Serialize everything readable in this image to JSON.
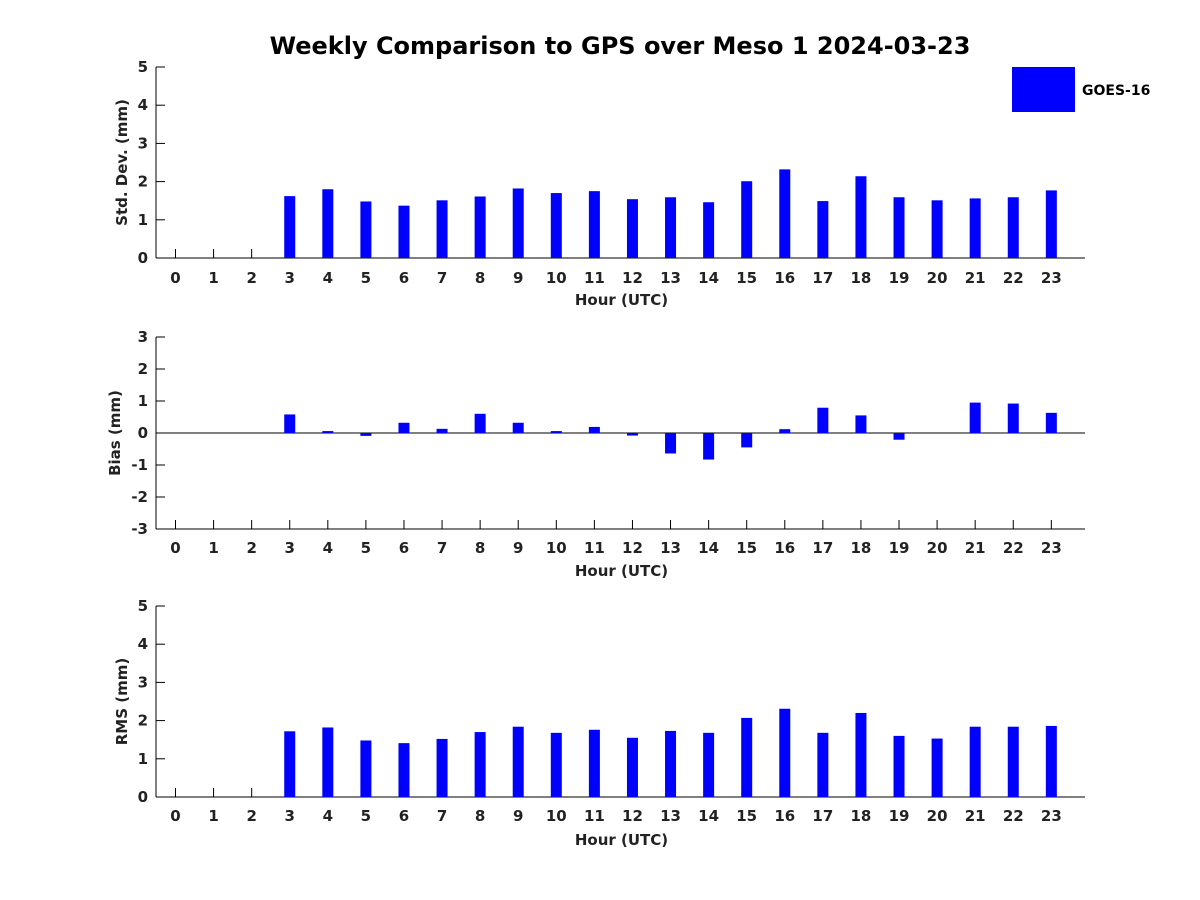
{
  "title": "Weekly Comparison to GPS over Meso 1 2024-03-23",
  "legend": {
    "label": "GOES-16",
    "color": "#0000ff"
  },
  "chart_data": [
    {
      "type": "bar",
      "name": "std",
      "series_name": "GOES-16",
      "categories": [
        "0",
        "1",
        "2",
        "3",
        "4",
        "5",
        "6",
        "7",
        "8",
        "9",
        "10",
        "11",
        "12",
        "13",
        "14",
        "15",
        "16",
        "17",
        "18",
        "19",
        "20",
        "21",
        "22",
        "23"
      ],
      "values": [
        0,
        0,
        0,
        1.62,
        1.8,
        1.48,
        1.37,
        1.51,
        1.61,
        1.82,
        1.7,
        1.75,
        1.54,
        1.59,
        1.46,
        2.01,
        2.32,
        1.49,
        2.14,
        1.59,
        1.51,
        1.56,
        1.59,
        1.77
      ],
      "xlabel": "Hour (UTC)",
      "ylabel": "Std. Dev. (mm)",
      "ylim": [
        0,
        5
      ],
      "yticks": [
        "0",
        "1",
        "2",
        "3",
        "4",
        "5"
      ]
    },
    {
      "type": "bar",
      "name": "bias",
      "series_name": "GOES-16",
      "categories": [
        "0",
        "1",
        "2",
        "3",
        "4",
        "5",
        "6",
        "7",
        "8",
        "9",
        "10",
        "11",
        "12",
        "13",
        "14",
        "15",
        "16",
        "17",
        "18",
        "19",
        "20",
        "21",
        "22",
        "23"
      ],
      "values": [
        0,
        0,
        0,
        0.58,
        0.06,
        -0.09,
        0.32,
        0.13,
        0.6,
        0.32,
        0.06,
        0.19,
        -0.08,
        -0.64,
        -0.83,
        -0.45,
        0.12,
        0.79,
        0.55,
        -0.21,
        0,
        0.95,
        0.92,
        0.63
      ],
      "xlabel": "Hour (UTC)",
      "ylabel": "Bias (mm)",
      "ylim": [
        -3,
        3
      ],
      "yticks": [
        "-3",
        "-2",
        "-1",
        "0",
        "1",
        "2",
        "3"
      ]
    },
    {
      "type": "bar",
      "name": "rms",
      "series_name": "GOES-16",
      "categories": [
        "0",
        "1",
        "2",
        "3",
        "4",
        "5",
        "6",
        "7",
        "8",
        "9",
        "10",
        "11",
        "12",
        "13",
        "14",
        "15",
        "16",
        "17",
        "18",
        "19",
        "20",
        "21",
        "22",
        "23"
      ],
      "values": [
        0,
        0,
        0,
        1.72,
        1.82,
        1.48,
        1.41,
        1.52,
        1.7,
        1.84,
        1.68,
        1.76,
        1.55,
        1.73,
        1.68,
        2.07,
        2.31,
        1.68,
        2.2,
        1.6,
        1.53,
        1.84,
        1.84,
        1.86
      ],
      "xlabel": "Hour (UTC)",
      "ylabel": "RMS (mm)",
      "ylim": [
        0,
        5
      ],
      "yticks": [
        "0",
        "1",
        "2",
        "3",
        "4",
        "5"
      ]
    }
  ]
}
